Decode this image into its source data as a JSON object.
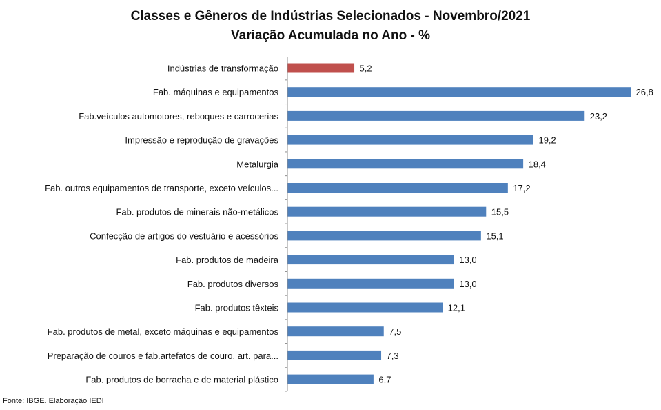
{
  "chart_data": {
    "type": "bar",
    "orientation": "horizontal",
    "title": "Classes e Gêneros de Indústrias Selecionados - Novembro/2021",
    "subtitle": "Variação Acumulada no Ano - %",
    "categories": [
      "Indústrias de transformação",
      "Fab. máquinas e equipamentos",
      "Fab.veículos automotores, reboques e carrocerias",
      "Impressão e reprodução de gravações",
      "Metalurgia",
      "Fab. outros equipamentos de transporte, exceto veículos...",
      "Fab. produtos de minerais não-metálicos",
      "Confecção de artigos do vestuário e acessórios",
      "Fab. produtos de madeira",
      "Fab. produtos diversos",
      "Fab. produtos têxteis",
      "Fab. produtos de metal, exceto máquinas e equipamentos",
      "Preparação de couros e fab.artefatos de couro, art. para...",
      "Fab. produtos de borracha e de material plástico"
    ],
    "values": [
      5.2,
      26.8,
      23.2,
      19.2,
      18.4,
      17.2,
      15.5,
      15.1,
      13.0,
      13.0,
      12.1,
      7.5,
      7.3,
      6.7
    ],
    "data_labels": [
      "5,2",
      "26,8",
      "23,2",
      "19,2",
      "18,4",
      "17,2",
      "15,5",
      "15,1",
      "13,0",
      "13,0",
      "12,1",
      "7,5",
      "7,3",
      "6,7"
    ],
    "xlim": [
      0,
      28
    ],
    "highlight_index": 0,
    "colors": {
      "highlight": "#C0504D",
      "bar": "#4F81BD"
    },
    "grid": false,
    "legend": "none"
  },
  "source": "Fonte: IBGE. Elaboração IEDI"
}
